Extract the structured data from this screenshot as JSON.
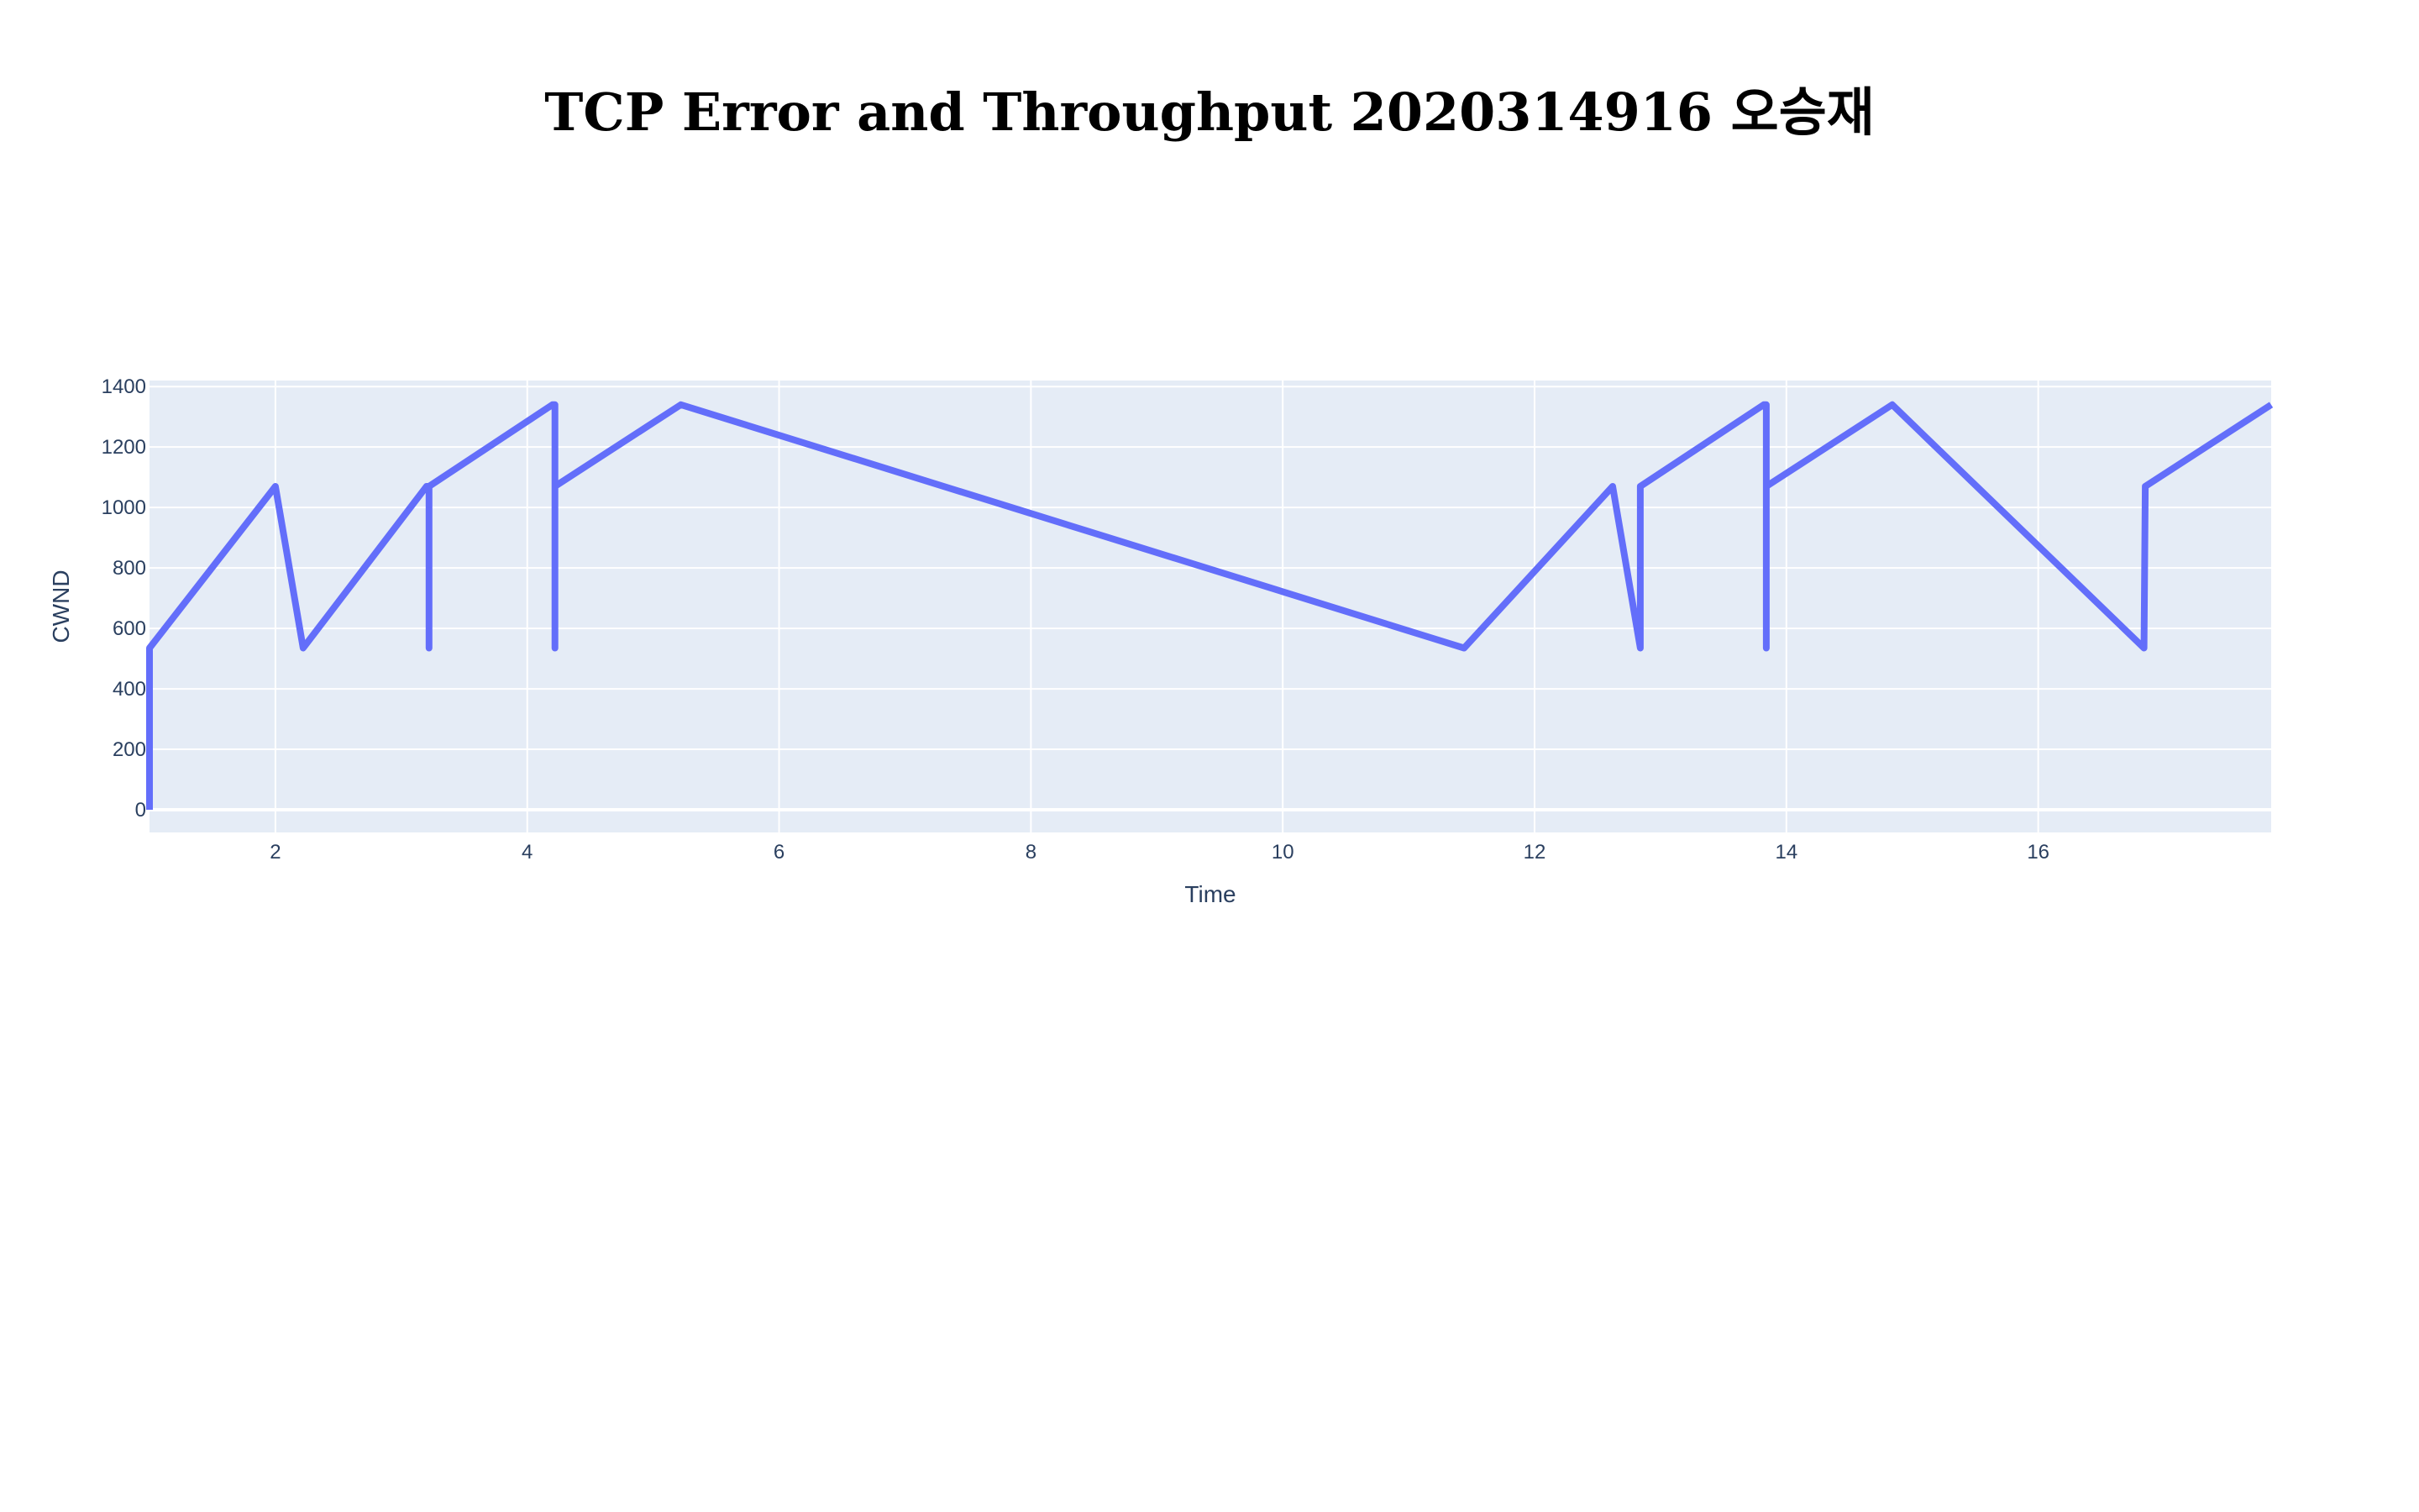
{
  "chart_data": {
    "type": "line",
    "title": "TCP Error and Throughput 2020314916 오승재",
    "xlabel": "Time",
    "ylabel": "CWND",
    "xlim": [
      1,
      17.85
    ],
    "ylim": [
      -75,
      1420
    ],
    "x_ticks": [
      2,
      4,
      6,
      8,
      10,
      12,
      14,
      16
    ],
    "y_ticks": [
      0,
      200,
      400,
      600,
      800,
      1000,
      1200,
      1400
    ],
    "grid": true,
    "legend": "none",
    "colors": {
      "plot_bg": "#e5ecf6",
      "grid": "#ffffff",
      "line": "#636efa",
      "tick_text": "#2a3f5f"
    },
    "series": [
      {
        "x": [
          1.0,
          1.0,
          2.0,
          2.22,
          3.2,
          3.22,
          3.22,
          3.22,
          4.2,
          4.22,
          4.22,
          4.22,
          5.22,
          11.44,
          12.62,
          12.84,
          12.84,
          13.82,
          13.84,
          13.84,
          13.84,
          14.84,
          16.84,
          16.85,
          17.85
        ],
        "y": [
          0,
          535,
          1070,
          535,
          1070,
          1070,
          535,
          1070,
          1340,
          1340,
          535,
          1070,
          1340,
          535,
          1070,
          535,
          1070,
          1340,
          1340,
          535,
          1070,
          1340,
          535,
          1070,
          1340
        ]
      }
    ]
  }
}
